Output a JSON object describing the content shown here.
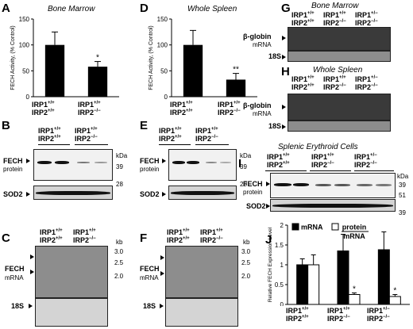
{
  "panels": {
    "A": {
      "letter": "A",
      "title": "Bone Marrow"
    },
    "D": {
      "letter": "D",
      "title": "Whole Spleen"
    },
    "G": {
      "letter": "G",
      "title": "Bone Marrow",
      "rows": [
        "β-globin",
        "mRNA",
        "18S"
      ]
    },
    "H": {
      "letter": "H",
      "title": "Whole Spleen",
      "rows": [
        "β-globin",
        "mRNA",
        "18S"
      ]
    },
    "B": {
      "letter": "B",
      "rows": [
        "FECH",
        "protein",
        "SOD2"
      ],
      "kda_label": "kDa",
      "markers": [
        "39",
        "28"
      ]
    },
    "E": {
      "letter": "E",
      "rows": [
        "FECH",
        "protein",
        "SOD2"
      ],
      "kda_label": "kDa",
      "markers": [
        "39",
        "28"
      ]
    },
    "I": {
      "letter": "I",
      "title": "Splenic Erythroid Cells",
      "rows": [
        "FECH",
        "protein",
        "SOD2"
      ],
      "kda_label": "kDa",
      "markers": [
        "39",
        "51",
        "39"
      ]
    },
    "C": {
      "letter": "C",
      "rows": [
        "FECH",
        "mRNA",
        "18S"
      ],
      "kb_label": "kb",
      "markers": [
        "3.0",
        "2.5",
        "2.0"
      ]
    },
    "F": {
      "letter": "F",
      "rows": [
        "FECH",
        "mRNA",
        "18S"
      ],
      "kb_label": "kb",
      "markers": [
        "3.0",
        "2.5",
        "2.0"
      ]
    },
    "J": {
      "letter": "J"
    }
  },
  "genotypes": {
    "wt": {
      "irp1": "IRP1",
      "irp1_sup": "+/+",
      "irp2": "IRP2",
      "irp2_sup": "+/+"
    },
    "irp2ko": {
      "irp1": "IRP1",
      "irp1_sup": "+/+",
      "irp2": "IRP2",
      "irp2_sup": "−/−"
    },
    "irp1het_irp2ko": {
      "irp1": "IRP1",
      "irp1_sup": "+/−",
      "irp2": "IRP2",
      "irp2_sup": "−/−"
    }
  },
  "chart_data": [
    {
      "type": "bar",
      "panel": "A",
      "categories": [
        "IRP1+/+ IRP2+/+",
        "IRP1+/+ IRP2−/−"
      ],
      "values": [
        100,
        58
      ],
      "errors": [
        25,
        10
      ],
      "significance": [
        "",
        "*"
      ],
      "ylabel": "FECH Activity, (% Control)",
      "ylim": [
        0,
        150
      ],
      "yticks": [
        0,
        50,
        100,
        150
      ]
    },
    {
      "type": "bar",
      "panel": "D",
      "categories": [
        "IRP1+/+ IRP2+/+",
        "IRP1+/+ IRP2−/−"
      ],
      "values": [
        100,
        33
      ],
      "errors": [
        28,
        12
      ],
      "significance": [
        "",
        "**"
      ],
      "ylabel": "FECH Activity, (% Control)",
      "ylim": [
        0,
        150
      ],
      "yticks": [
        0,
        50,
        100,
        150
      ]
    },
    {
      "type": "bar",
      "panel": "J",
      "categories": [
        "IRP1+/+ IRP2+/+",
        "IRP1+/+ IRP2−/−",
        "IRP1+/− IRP2−/−"
      ],
      "series": [
        {
          "name": "mRNA",
          "color": "#000000",
          "values": [
            1.0,
            1.35,
            1.38
          ],
          "errors": [
            0.15,
            0.42,
            0.45
          ]
        },
        {
          "name": "protein/mRNA",
          "color": "#ffffff",
          "values": [
            1.0,
            0.25,
            0.2
          ],
          "errors": [
            0.25,
            0.04,
            0.05
          ]
        }
      ],
      "significance": [
        [
          "",
          ""
        ],
        [
          "",
          "*"
        ],
        [
          "",
          "*"
        ]
      ],
      "ylabel": "Relative FECH Expression Level",
      "ylim": [
        0,
        2
      ],
      "yticks": [
        0,
        0.5,
        1,
        1.5,
        2
      ]
    }
  ]
}
